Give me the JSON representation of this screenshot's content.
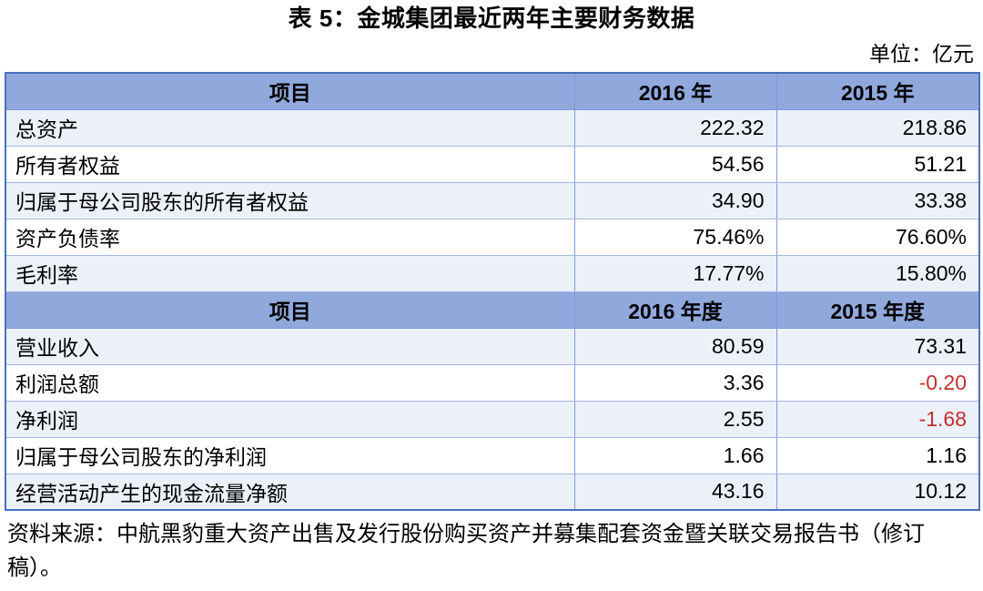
{
  "page": {
    "title": "表 5：金城集团最近两年主要财务数据",
    "unit_label": "单位：亿元",
    "source_note": "资料来源：中航黑豹重大资产出售及发行股份购买资产并募集配套资金暨关联交易报告书（修订稿）。"
  },
  "colors": {
    "header_bg": "#90A8DC",
    "row_bg": "#FFFFFF",
    "row_alt_bg": "#ECF1F9",
    "border_outer": "#4A70C0",
    "border_vertical": "#7E9BD6",
    "border_horizontal": "#A3B7E2",
    "negative_text": "#C2302E",
    "text": "#000000"
  },
  "table": {
    "sections": [
      {
        "header": {
          "item": "项目",
          "col2016": "2016 年",
          "col2015": "2015 年"
        },
        "rows": [
          {
            "item": "总资产",
            "v2016": "222.32",
            "v2015": "218.86"
          },
          {
            "item": "所有者权益",
            "v2016": "54.56",
            "v2015": "51.21"
          },
          {
            "item": "归属于母公司股东的所有者权益",
            "v2016": "34.90",
            "v2015": "33.38"
          },
          {
            "item": "资产负债率",
            "v2016": "75.46%",
            "v2015": "76.60%"
          },
          {
            "item": "毛利率",
            "v2016": "17.77%",
            "v2015": "15.80%"
          }
        ]
      },
      {
        "header": {
          "item": "项目",
          "col2016": "2016 年度",
          "col2015": "2015 年度"
        },
        "rows": [
          {
            "item": "营业收入",
            "v2016": "80.59",
            "v2015": "73.31"
          },
          {
            "item": "利润总额",
            "v2016": "3.36",
            "v2015": "-0.20"
          },
          {
            "item": "净利润",
            "v2016": "2.55",
            "v2015": "-1.68"
          },
          {
            "item": "归属于母公司股东的净利润",
            "v2016": "1.66",
            "v2015": "1.16"
          },
          {
            "item": "经营活动产生的现金流量净额",
            "v2016": "43.16",
            "v2015": "10.12"
          }
        ]
      }
    ]
  }
}
